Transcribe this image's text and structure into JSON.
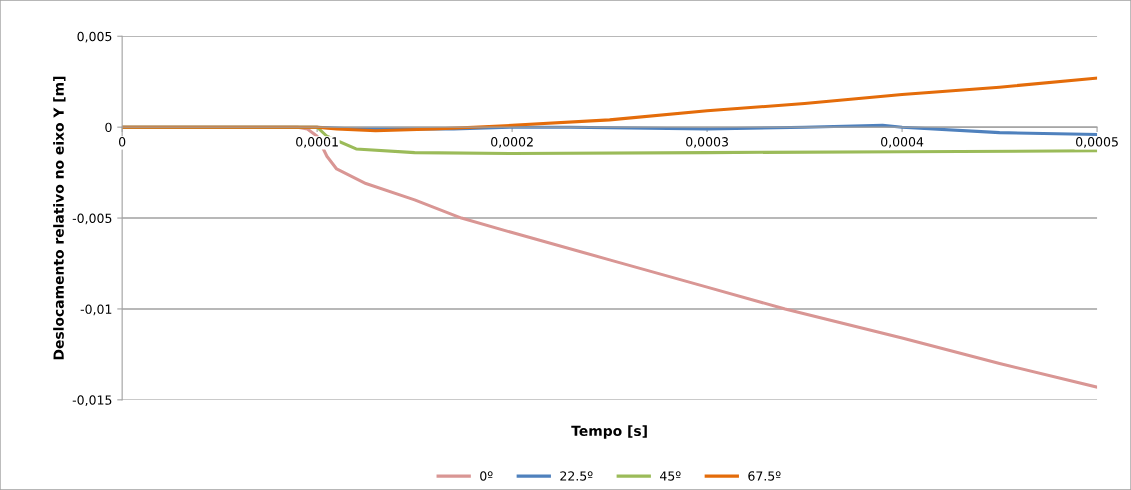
{
  "chart_data": {
    "type": "line",
    "xlabel": "Tempo [s]",
    "ylabel": "Deslocamento relativo no eixo Y [m]",
    "xlim": [
      0,
      0.0005
    ],
    "ylim": [
      -0.015,
      0.005
    ],
    "xticks": [
      {
        "value": 0,
        "label": "0"
      },
      {
        "value": 0.0001,
        "label": "0,0001"
      },
      {
        "value": 0.0002,
        "label": "0,0002"
      },
      {
        "value": 0.0003,
        "label": "0,0003"
      },
      {
        "value": 0.0004,
        "label": "0,0004"
      },
      {
        "value": 0.0005,
        "label": "0,0005"
      }
    ],
    "yticks": [
      {
        "value": 0.005,
        "label": "0,005"
      },
      {
        "value": 0,
        "label": "0"
      },
      {
        "value": -0.005,
        "label": "-0,005"
      },
      {
        "value": -0.01,
        "label": "-0,01"
      },
      {
        "value": -0.015,
        "label": "-0,015"
      }
    ],
    "grid": "y",
    "legend": "bottom",
    "marker": "none",
    "line_style": "solid",
    "series": [
      {
        "name": "0º",
        "color": "#d99694",
        "x": [
          0,
          9e-05,
          9.5e-05,
          0.0001,
          0.000105,
          0.00011,
          0.000125,
          0.00015,
          0.000174,
          0.0002,
          0.00025,
          0.0003,
          0.00034,
          0.0004,
          0.00045,
          0.0005
        ],
        "values": [
          0,
          0,
          -0.0001,
          -0.0005,
          -0.0016,
          -0.0023,
          -0.0031,
          -0.004,
          -0.005,
          -0.0058,
          -0.0073,
          -0.0088,
          -0.01,
          -0.0116,
          -0.013,
          -0.0143
        ]
      },
      {
        "name": "22.5º",
        "color": "#4f81bd",
        "x": [
          0,
          0.0001,
          0.00012,
          0.00017,
          0.0002,
          0.00023,
          0.0003,
          0.00035,
          0.00039,
          0.0004,
          0.00045,
          0.0005
        ],
        "values": [
          0,
          0,
          -0.0001,
          -0.0001,
          0,
          0,
          -0.0001,
          0,
          0.0001,
          0,
          -0.0003,
          -0.0004
        ]
      },
      {
        "name": "45º",
        "color": "#9bbb59",
        "x": [
          0,
          0.0001,
          0.000105,
          0.00012,
          0.00015,
          0.0002,
          0.0003,
          0.0004,
          0.0005
        ],
        "values": [
          0,
          0,
          -0.0005,
          -0.0012,
          -0.0014,
          -0.00145,
          -0.0014,
          -0.00135,
          -0.0013
        ]
      },
      {
        "name": "67.5º",
        "color": "#e46c0a",
        "x": [
          0,
          0.0001,
          0.00011,
          0.00013,
          0.00016,
          0.00018,
          0.0002,
          0.00025,
          0.0003,
          0.00035,
          0.0004,
          0.00045,
          0.0005
        ],
        "values": [
          0,
          0,
          -0.0001,
          -0.0002,
          -0.0001,
          0,
          0.0001,
          0.0004,
          0.0009,
          0.0013,
          0.0018,
          0.0022,
          0.0027
        ]
      }
    ]
  }
}
